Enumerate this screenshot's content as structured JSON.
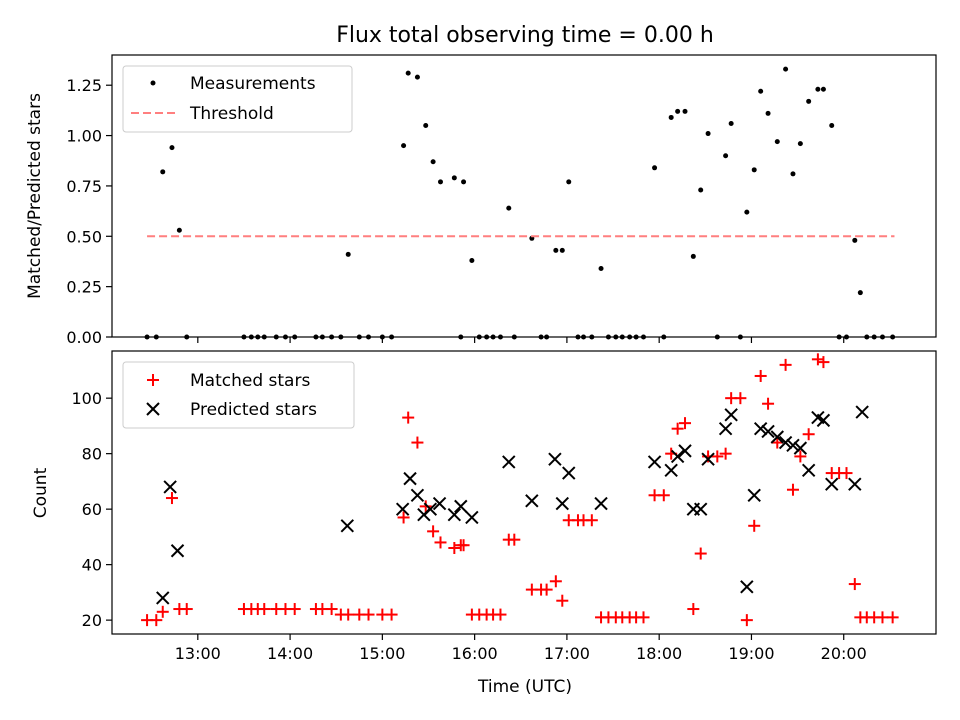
{
  "figure": {
    "title": "Flux total observing time = 0.00 h"
  },
  "x_ticks": [
    "13:00",
    "14:00",
    "15:00",
    "16:00",
    "17:00",
    "18:00",
    "19:00",
    "20:00"
  ],
  "x_tick_hours": [
    13,
    14,
    15,
    16,
    17,
    18,
    19,
    20
  ],
  "chart_data": [
    {
      "type": "scatter",
      "title": "Flux total observing time = 0.00 h",
      "xlabel": "",
      "ylabel": "Matched/Predicted stars",
      "xlim": [
        12.07,
        21.0
      ],
      "ylim": [
        0,
        1.4
      ],
      "yticks": [
        0.0,
        0.25,
        0.5,
        0.75,
        1.0,
        1.25
      ],
      "ytick_labels": [
        "0.00",
        "0.25",
        "0.50",
        "0.75",
        "1.00",
        "1.25"
      ],
      "legend": "top-left",
      "colors": {
        "measurements": "#000000",
        "threshold": "#ff7f7f"
      },
      "series": [
        {
          "name": "Measurements",
          "style": "dot",
          "x": [
            12.45,
            12.55,
            12.62,
            12.72,
            12.8,
            12.88,
            13.5,
            13.58,
            13.65,
            13.72,
            13.85,
            13.95,
            14.05,
            14.28,
            14.35,
            14.45,
            14.55,
            14.63,
            14.75,
            14.85,
            15.0,
            15.1,
            15.23,
            15.28,
            15.38,
            15.47,
            15.55,
            15.63,
            15.78,
            15.85,
            15.88,
            15.97,
            16.05,
            16.13,
            16.2,
            16.28,
            16.37,
            16.43,
            16.62,
            16.72,
            16.78,
            16.88,
            16.95,
            17.02,
            17.12,
            17.18,
            17.27,
            17.37,
            17.45,
            17.53,
            17.6,
            17.68,
            17.75,
            17.83,
            17.95,
            18.05,
            18.13,
            18.2,
            18.28,
            18.37,
            18.45,
            18.53,
            18.63,
            18.72,
            18.78,
            18.88,
            18.95,
            19.03,
            19.1,
            19.18,
            19.28,
            19.37,
            19.45,
            19.53,
            19.62,
            19.72,
            19.78,
            19.87,
            19.95,
            20.03,
            20.12,
            20.18,
            20.25,
            20.33,
            20.42,
            20.53
          ],
          "y": [
            0.0,
            0.0,
            0.82,
            0.94,
            0.53,
            0.0,
            0.0,
            0.0,
            0.0,
            0.0,
            0.0,
            0.0,
            0.0,
            0.0,
            0.0,
            0.0,
            0.0,
            0.41,
            0.0,
            0.0,
            0.0,
            0.0,
            0.95,
            1.31,
            1.29,
            1.05,
            0.87,
            0.77,
            0.79,
            0.0,
            0.77,
            0.38,
            0.0,
            0.0,
            0.0,
            0.0,
            0.64,
            0.0,
            0.49,
            0.0,
            0.0,
            0.43,
            0.43,
            0.77,
            0.0,
            0.0,
            0.0,
            0.34,
            0.0,
            0.0,
            0.0,
            0.0,
            0.0,
            0.0,
            0.84,
            0.0,
            1.09,
            1.12,
            1.12,
            0.4,
            0.73,
            1.01,
            0.0,
            0.9,
            1.06,
            0.0,
            0.62,
            0.83,
            1.22,
            1.11,
            0.97,
            1.33,
            0.81,
            0.96,
            1.17,
            1.23,
            1.23,
            1.05,
            0.0,
            0.0,
            0.48,
            0.22,
            0.0,
            0.0,
            0.0,
            0.0
          ]
        },
        {
          "name": "Threshold",
          "style": "dashed-line",
          "x": [
            12.45,
            20.55
          ],
          "y": [
            0.5,
            0.5
          ]
        }
      ]
    },
    {
      "type": "scatter",
      "title": "",
      "xlabel": "Time (UTC)",
      "ylabel": "Count",
      "xlim": [
        12.07,
        21.0
      ],
      "ylim": [
        15,
        117
      ],
      "yticks": [
        20,
        40,
        60,
        80,
        100
      ],
      "ytick_labels": [
        "20",
        "40",
        "60",
        "80",
        "100"
      ],
      "legend": "top-left",
      "colors": {
        "matched": "#ff0000",
        "predicted": "#000000"
      },
      "series": [
        {
          "name": "Matched stars",
          "marker": "plus",
          "x": [
            12.45,
            12.55,
            12.62,
            12.72,
            12.8,
            12.88,
            13.5,
            13.58,
            13.65,
            13.72,
            13.85,
            13.95,
            14.05,
            14.28,
            14.35,
            14.45,
            14.55,
            14.63,
            14.75,
            14.85,
            15.0,
            15.1,
            15.23,
            15.28,
            15.38,
            15.47,
            15.55,
            15.63,
            15.78,
            15.85,
            15.88,
            15.97,
            16.05,
            16.13,
            16.2,
            16.28,
            16.37,
            16.43,
            16.62,
            16.72,
            16.78,
            16.88,
            16.95,
            17.02,
            17.12,
            17.18,
            17.27,
            17.37,
            17.45,
            17.53,
            17.6,
            17.68,
            17.75,
            17.83,
            17.95,
            18.05,
            18.13,
            18.2,
            18.28,
            18.37,
            18.45,
            18.53,
            18.63,
            18.72,
            18.78,
            18.88,
            18.95,
            19.03,
            19.1,
            19.18,
            19.28,
            19.37,
            19.45,
            19.53,
            19.62,
            19.72,
            19.78,
            19.87,
            19.95,
            20.03,
            20.12,
            20.18,
            20.25,
            20.33,
            20.42,
            20.53
          ],
          "y": [
            20,
            20,
            23,
            64,
            24,
            24,
            24,
            24,
            24,
            24,
            24,
            24,
            24,
            24,
            24,
            24,
            22,
            22,
            22,
            22,
            22,
            22,
            57,
            93,
            84,
            61,
            52,
            48,
            46,
            47,
            47,
            22,
            22,
            22,
            22,
            22,
            49,
            49,
            31,
            31,
            31,
            34,
            27,
            56,
            56,
            56,
            56,
            21,
            21,
            21,
            21,
            21,
            21,
            21,
            65,
            65,
            80,
            89,
            91,
            24,
            44,
            79,
            79,
            80,
            100,
            100,
            20,
            54,
            108,
            98,
            84,
            112,
            67,
            79,
            87,
            114,
            113,
            73,
            73,
            73,
            33,
            21,
            21,
            21,
            21,
            21
          ]
        },
        {
          "name": "Predicted stars",
          "marker": "x",
          "x": [
            12.62,
            12.7,
            12.78,
            14.62,
            15.22,
            15.3,
            15.38,
            15.45,
            15.52,
            15.62,
            15.78,
            15.85,
            15.97,
            16.37,
            16.62,
            16.87,
            16.95,
            17.02,
            17.37,
            17.95,
            18.13,
            18.2,
            18.28,
            18.37,
            18.45,
            18.53,
            18.72,
            18.78,
            18.95,
            19.03,
            19.1,
            19.18,
            19.28,
            19.37,
            19.45,
            19.53,
            19.62,
            19.72,
            19.78,
            19.87,
            20.12,
            20.2
          ],
          "y": [
            28,
            68,
            45,
            54,
            60,
            71,
            65,
            58,
            60,
            62,
            58,
            61,
            57,
            77,
            63,
            78,
            62,
            73,
            62,
            77,
            74,
            79,
            81,
            60,
            60,
            78,
            89,
            94,
            32,
            65,
            89,
            88,
            86,
            84,
            83,
            82,
            74,
            93,
            92,
            69,
            69,
            95
          ]
        }
      ]
    }
  ]
}
